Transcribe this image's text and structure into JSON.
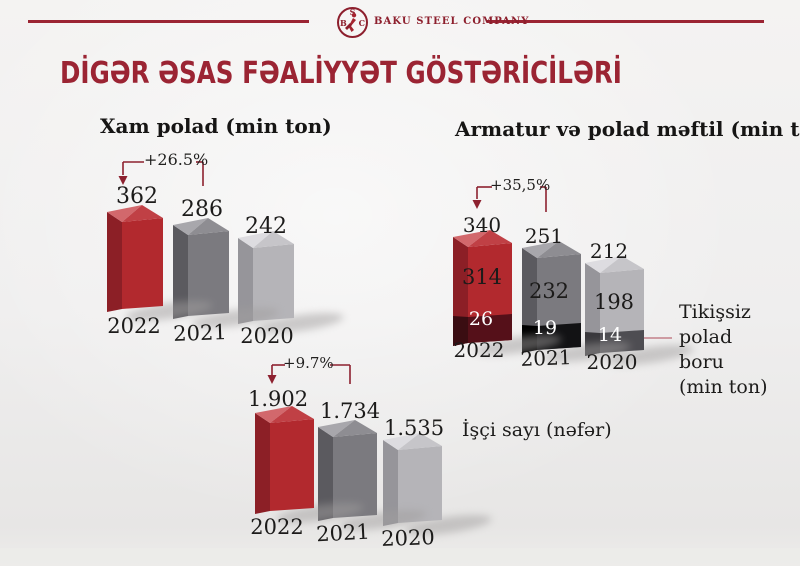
{
  "header": {
    "company_name": "BAKU STEEL COMPANY",
    "logo": {
      "top_letter": "S",
      "left_letter": "B",
      "right_letter": "C"
    }
  },
  "title": "DİGƏR ƏSAS FƏALİYYƏT GÖSTƏRİCİLƏRİ",
  "charts": {
    "crude_steel": {
      "title": "Xam polad (min ton)",
      "annotation": "+26.5%",
      "values": [
        "362",
        "286",
        "242"
      ],
      "years": [
        "2022",
        "2021",
        "2020"
      ]
    },
    "rebar_wire": {
      "title": "Armatur və polad məftil (min ton)",
      "annotation": "+35,5%",
      "totals": [
        "340",
        "251",
        "212"
      ],
      "upper_values": [
        "314",
        "232",
        "198"
      ],
      "lower_values": [
        "26",
        "19",
        "14"
      ],
      "years": [
        "2022",
        "2021",
        "2020"
      ],
      "callout_lines": [
        "Tikişsiz",
        "polad",
        "boru",
        "(min ton)"
      ]
    },
    "employees": {
      "label": "İşçi sayı (nəfər)",
      "annotation": "+9.7%",
      "values": [
        "1.902",
        "1.734",
        "1.535"
      ],
      "years": [
        "2022",
        "2021",
        "2020"
      ]
    }
  },
  "colors": {
    "accent": "#9b2433",
    "bracket": "#8d212f",
    "connector": "#c4808a",
    "shadow": "#a09e9e",
    "bar_red": {
      "side": "#8c1f26",
      "front": "#b2292e",
      "top_left": "#d2686c",
      "top_right": "#c04045"
    },
    "bar_gray": {
      "side": "#5b5a5f",
      "front": "#7b7a7f",
      "top_left": "#a8a7ac",
      "top_right": "#8e8d92"
    },
    "bar_light": {
      "side": "#96959a",
      "front": "#b5b4b8",
      "top_left": "#dddce0",
      "top_right": "#c6c5c9"
    },
    "seg_maroon": {
      "side": "#3a0d12",
      "front": "#551019"
    },
    "seg_black": {
      "side": "#000000",
      "front": "#121214"
    },
    "seg_dark": {
      "side": "#39383c",
      "front": "#4e4d52"
    }
  },
  "chart_data": [
    {
      "type": "bar",
      "title": "Xam polad (min ton)",
      "categories": [
        "2022",
        "2021",
        "2020"
      ],
      "values": [
        362,
        286,
        242
      ],
      "annotation": "+26.5% change from 2021 to 2022",
      "bar_colors": [
        "red",
        "dark-gray",
        "light-gray"
      ],
      "xlabel": "",
      "ylabel": "min ton"
    },
    {
      "type": "bar",
      "title": "Armatur və polad məftil (min ton)",
      "categories": [
        "2022",
        "2021",
        "2020"
      ],
      "stacked": true,
      "series": [
        {
          "name": "Armatur və polad məftil",
          "values": [
            314,
            232,
            198
          ]
        },
        {
          "name": "Tikişsiz polad boru (min ton)",
          "values": [
            26,
            19,
            14
          ]
        }
      ],
      "totals": [
        340,
        251,
        212
      ],
      "annotation": "+35,5% change from 2021 to 2022",
      "xlabel": "",
      "ylabel": "min ton"
    },
    {
      "type": "bar",
      "title": "İşçi sayı (nəfər)",
      "categories": [
        "2022",
        "2021",
        "2020"
      ],
      "values": [
        1902,
        1734,
        1535
      ],
      "annotation": "+9.7% change from 2021 to 2022",
      "bar_colors": [
        "red",
        "dark-gray",
        "light-gray"
      ],
      "xlabel": "",
      "ylabel": "nəfər"
    }
  ]
}
